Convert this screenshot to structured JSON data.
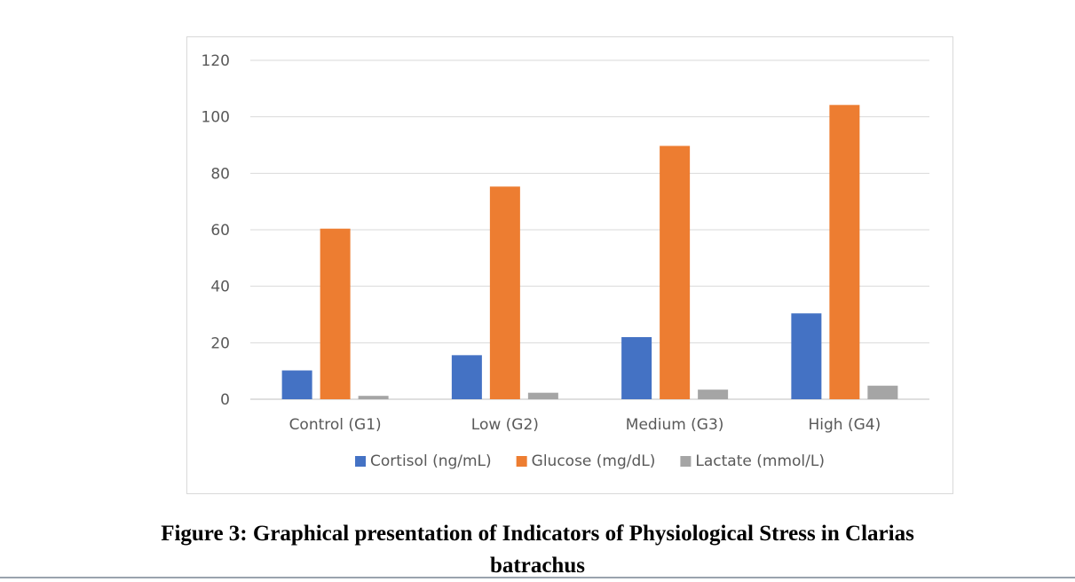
{
  "chart_data": {
    "type": "bar",
    "title": "",
    "xlabel": "",
    "ylabel": "",
    "categories": [
      "Control (G1)",
      "Low (G2)",
      "Medium (G3)",
      "High (G4)"
    ],
    "series": [
      {
        "name": "Cortisol (ng/mL)",
        "color": "#4472c4",
        "values": [
          10.2,
          15.6,
          22.0,
          30.4
        ]
      },
      {
        "name": "Glucose (mg/dL)",
        "color": "#ed7d31",
        "values": [
          60.4,
          75.3,
          89.7,
          104.2
        ]
      },
      {
        "name": "Lactate (mmol/L)",
        "color": "#a5a5a5",
        "values": [
          1.2,
          2.3,
          3.4,
          4.8
        ]
      }
    ],
    "ylim": [
      0,
      120
    ],
    "yticks": [
      "0",
      "20",
      "40",
      "60",
      "80",
      "100",
      "120"
    ],
    "grid": true,
    "legend": "bottom"
  },
  "caption": {
    "line1": "Figure 3: Graphical presentation of Indicators of Physiological Stress in Clarias",
    "line2": "batrachus"
  },
  "colors": {
    "gridline": "#d9d9d9",
    "axis": "#bfbfbf",
    "text": "#595959"
  }
}
